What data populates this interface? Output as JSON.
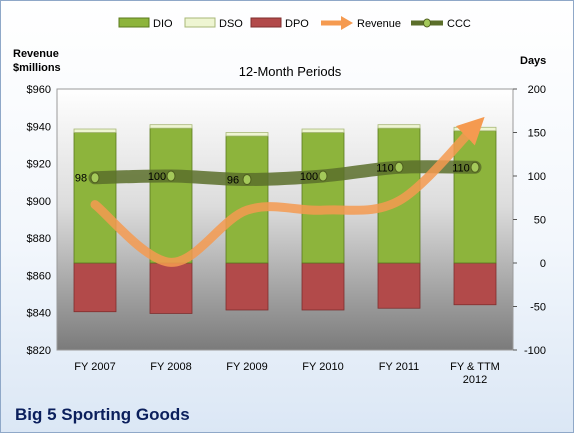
{
  "chart_data": {
    "type": "bar",
    "title": "12-Month Periods",
    "company": "Big 5 Sporting Goods",
    "categories": [
      [
        "FY 2007"
      ],
      [
        "FY 2008"
      ],
      [
        "FY 2009"
      ],
      [
        "FY 2010"
      ],
      [
        "FY 2011"
      ],
      [
        "FY & TTM",
        "2012"
      ]
    ],
    "left_axis": {
      "label": [
        "Revenue",
        "$millions"
      ],
      "min": 820,
      "max": 960,
      "step": 20,
      "prefix": "$"
    },
    "right_axis": {
      "label": "Days",
      "min": -100,
      "max": 200,
      "step": 50
    },
    "series": [
      {
        "name": "DIO",
        "type": "stacked-bar",
        "axis": "right",
        "color": "#8db43c",
        "values": [
          150,
          155,
          146,
          150,
          155,
          152
        ]
      },
      {
        "name": "DSO",
        "type": "stacked-bar",
        "axis": "right",
        "color": "#eef5d2",
        "values": [
          4,
          4,
          4,
          4,
          4,
          4
        ]
      },
      {
        "name": "DPO",
        "type": "bar-negative",
        "axis": "right",
        "color": "#b24a4a",
        "values": [
          -56,
          -58,
          -54,
          -54,
          -52,
          -48
        ]
      },
      {
        "name": "Revenue",
        "type": "line",
        "axis": "left",
        "color": "#f59a50",
        "values": [
          898,
          867,
          895,
          895,
          900,
          940
        ]
      },
      {
        "name": "CCC",
        "type": "line",
        "axis": "right",
        "color": "#5b6e2a",
        "values": [
          98,
          100,
          96,
          100,
          110,
          110
        ],
        "labels": [
          "98",
          "100",
          "96",
          "100",
          "110",
          "110"
        ]
      }
    ],
    "legend_position": "top",
    "grid": false
  }
}
